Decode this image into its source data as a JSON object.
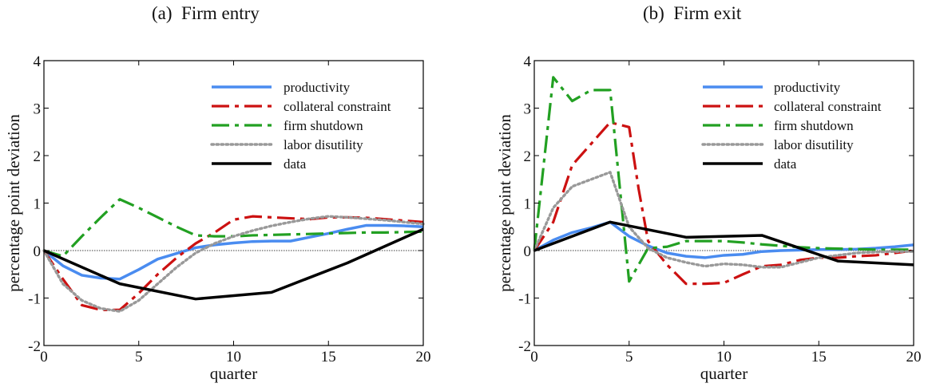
{
  "chart_data": [
    {
      "type": "line",
      "title": "(a)  Firm entry",
      "xlabel": "quarter",
      "ylabel": "percentage point deviation",
      "xlim": [
        0,
        20
      ],
      "ylim": [
        -2,
        4
      ],
      "xticks": [
        0,
        5,
        10,
        15,
        20
      ],
      "yticks": [
        -2,
        -1,
        0,
        1,
        2,
        3,
        4
      ],
      "grid": false,
      "legend_position": "top-right",
      "zero_line": true,
      "series": [
        {
          "name": "productivity",
          "color": "#4a8cf0",
          "style": "solid",
          "x": [
            0,
            1,
            2,
            3,
            4,
            5,
            6,
            7,
            8,
            9,
            10,
            11,
            12,
            13,
            14,
            15,
            16,
            17,
            18,
            19,
            20
          ],
          "y": [
            0,
            -0.32,
            -0.52,
            -0.58,
            -0.6,
            -0.4,
            -0.18,
            -0.06,
            0.06,
            0.12,
            0.16,
            0.19,
            0.2,
            0.2,
            0.28,
            0.36,
            0.45,
            0.53,
            0.53,
            0.52,
            0.5
          ]
        },
        {
          "name": "collateral constraint",
          "color": "#cc1111",
          "style": "dashdot",
          "x": [
            0,
            1,
            2,
            3,
            4,
            5,
            6,
            7,
            8,
            9,
            10,
            11,
            12,
            13,
            14,
            15,
            16,
            17,
            18,
            19,
            20
          ],
          "y": [
            0,
            -0.6,
            -1.15,
            -1.25,
            -1.25,
            -0.9,
            -0.5,
            -0.15,
            0.15,
            0.38,
            0.65,
            0.72,
            0.7,
            0.68,
            0.66,
            0.7,
            0.7,
            0.69,
            0.66,
            0.63,
            0.6
          ]
        },
        {
          "name": "firm shutdown",
          "color": "#22a022",
          "style": "dashdot",
          "x": [
            0,
            1,
            2,
            3,
            4,
            5,
            6,
            7,
            8,
            9,
            10,
            11,
            12,
            13,
            14,
            15,
            16,
            17,
            18,
            19,
            20
          ],
          "y": [
            0,
            -0.12,
            0.3,
            0.7,
            1.08,
            0.9,
            0.7,
            0.5,
            0.32,
            0.3,
            0.3,
            0.32,
            0.33,
            0.34,
            0.35,
            0.36,
            0.37,
            0.38,
            0.38,
            0.39,
            0.4
          ]
        },
        {
          "name": "labor disutility",
          "color": "#999999",
          "style": "dotted",
          "x": [
            0,
            1,
            2,
            3,
            4,
            5,
            6,
            7,
            8,
            9,
            10,
            11,
            12,
            13,
            14,
            15,
            16,
            17,
            18,
            19,
            20
          ],
          "y": [
            0,
            -0.7,
            -1.05,
            -1.22,
            -1.28,
            -1.05,
            -0.7,
            -0.35,
            -0.05,
            0.15,
            0.3,
            0.42,
            0.52,
            0.6,
            0.67,
            0.72,
            0.7,
            0.67,
            0.64,
            0.6,
            0.56
          ]
        },
        {
          "name": "data",
          "color": "#000000",
          "style": "solid",
          "x": [
            0,
            4,
            8,
            12,
            16,
            20
          ],
          "y": [
            0,
            -0.7,
            -1.02,
            -0.88,
            -0.26,
            0.45
          ]
        }
      ]
    },
    {
      "type": "line",
      "title": "(b)  Firm exit",
      "xlabel": "quarter",
      "ylabel": "percentage point deviation",
      "xlim": [
        0,
        20
      ],
      "ylim": [
        -2,
        4
      ],
      "xticks": [
        0,
        5,
        10,
        15,
        20
      ],
      "yticks": [
        -2,
        -1,
        0,
        1,
        2,
        3,
        4
      ],
      "grid": false,
      "legend_position": "top-right",
      "zero_line": true,
      "series": [
        {
          "name": "productivity",
          "color": "#4a8cf0",
          "style": "solid",
          "x": [
            0,
            1,
            2,
            3,
            4,
            5,
            6,
            7,
            8,
            9,
            10,
            11,
            12,
            13,
            14,
            15,
            16,
            17,
            18,
            19,
            20
          ],
          "y": [
            0,
            0.22,
            0.38,
            0.48,
            0.6,
            0.3,
            0.1,
            -0.05,
            -0.12,
            -0.15,
            -0.1,
            -0.08,
            -0.02,
            0,
            0.01,
            0.02,
            0.02,
            0.03,
            0.05,
            0.08,
            0.12
          ]
        },
        {
          "name": "collateral constraint",
          "color": "#cc1111",
          "style": "dashdot",
          "x": [
            0,
            1,
            2,
            3,
            4,
            5,
            5.5,
            6,
            7,
            8,
            9,
            10,
            11,
            12,
            13,
            14,
            15,
            16,
            17,
            18,
            19,
            20
          ],
          "y": [
            0,
            0.6,
            1.8,
            2.25,
            2.7,
            2.6,
            1.3,
            0.2,
            -0.3,
            -0.7,
            -0.7,
            -0.68,
            -0.5,
            -0.33,
            -0.3,
            -0.2,
            -0.15,
            -0.15,
            -0.12,
            -0.1,
            -0.05,
            0
          ]
        },
        {
          "name": "firm shutdown",
          "color": "#22a022",
          "style": "dashdot",
          "x": [
            0,
            1,
            2,
            3,
            4,
            5,
            6,
            7,
            8,
            9,
            10,
            11,
            12,
            13,
            14,
            15,
            16,
            17,
            18,
            19,
            20
          ],
          "y": [
            0,
            3.65,
            3.15,
            3.38,
            3.38,
            -0.65,
            0.05,
            0.08,
            0.2,
            0.2,
            0.2,
            0.17,
            0.13,
            0.1,
            0.07,
            0.05,
            0.04,
            0.03,
            0.02,
            0.02,
            0.02
          ]
        },
        {
          "name": "labor disutility",
          "color": "#999999",
          "style": "dotted",
          "x": [
            0,
            1,
            2,
            3,
            4,
            5,
            6,
            7,
            8,
            9,
            10,
            11,
            12,
            13,
            14,
            15,
            16,
            17,
            18,
            19,
            20
          ],
          "y": [
            0,
            0.9,
            1.35,
            1.5,
            1.65,
            0.5,
            0.05,
            -0.15,
            -0.25,
            -0.33,
            -0.28,
            -0.3,
            -0.35,
            -0.35,
            -0.25,
            -0.15,
            -0.1,
            -0.05,
            -0.03,
            -0.02,
            -0.02
          ]
        },
        {
          "name": "data",
          "color": "#000000",
          "style": "solid",
          "x": [
            0,
            4,
            8,
            12,
            16,
            20
          ],
          "y": [
            0,
            0.6,
            0.28,
            0.32,
            -0.22,
            -0.3
          ]
        }
      ]
    }
  ]
}
